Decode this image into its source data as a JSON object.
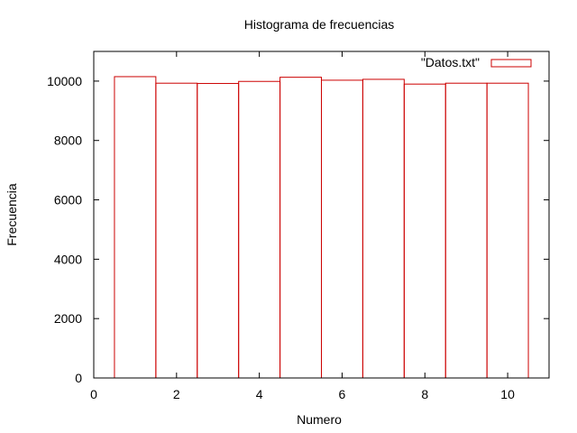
{
  "chart_data": {
    "type": "bar",
    "title": "Histograma de frecuencias",
    "xlabel": "Numero",
    "ylabel": "Frecuencia",
    "xlim": [
      0,
      11
    ],
    "ylim": [
      0,
      11000
    ],
    "xticks": [
      0,
      2,
      4,
      6,
      8,
      10
    ],
    "yticks": [
      0,
      2000,
      4000,
      6000,
      8000,
      10000
    ],
    "bar_width": 1,
    "legend_position": "top-right",
    "grid": false,
    "bar_color": "#cc0000",
    "series": [
      {
        "name": "\"Datos.txt\"",
        "x": [
          1,
          2,
          3,
          4,
          5,
          6,
          7,
          8,
          9,
          10
        ],
        "values": [
          10150,
          9930,
          9920,
          9990,
          10130,
          10030,
          10060,
          9900,
          9930,
          9930
        ]
      }
    ]
  }
}
